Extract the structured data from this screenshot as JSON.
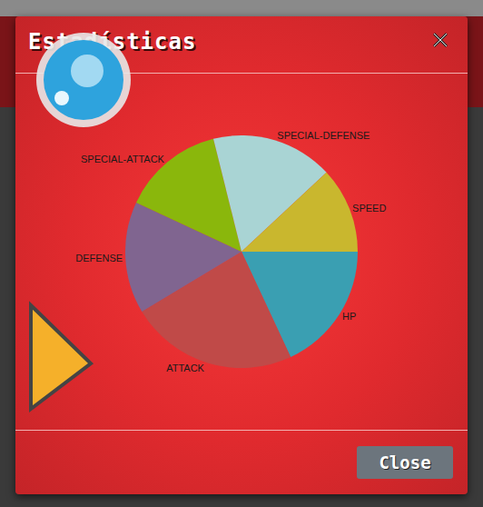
{
  "chart_data": {
    "type": "pie",
    "title": "Estadísticas",
    "categories": [
      "HP",
      "ATTACK",
      "DEFENSE",
      "SPECIAL-ATTACK",
      "SPECIAL-DEFENSE",
      "SPEED"
    ],
    "values": [
      65,
      84,
      56,
      51,
      61,
      43
    ],
    "colors": [
      "#3a9fb2",
      "#c04a48",
      "#806590",
      "#8ab70c",
      "#a9d4d4",
      "#c9b72e"
    ],
    "data_labels": false
  },
  "modal": {
    "close_button": "Close"
  }
}
